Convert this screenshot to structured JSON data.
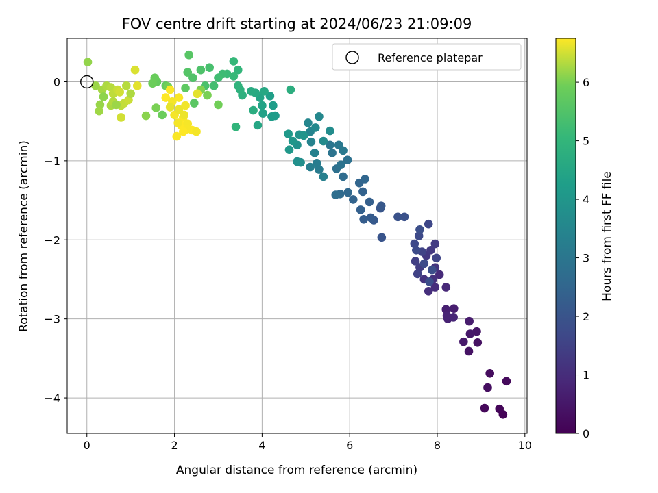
{
  "chart_data": {
    "type": "scatter",
    "title": "FOV centre drift starting at 2024/06/23 21:09:09",
    "xlabel": "Angular distance from reference (arcmin)",
    "ylabel": "Rotation from reference (arcmin)",
    "xlim": [
      -0.45,
      10.05
    ],
    "ylim": [
      -4.45,
      0.55
    ],
    "xticks": [
      "0",
      "2",
      "4",
      "6",
      "8",
      "10"
    ],
    "yticks": [
      "0",
      "−1",
      "−2",
      "−3",
      "−4"
    ],
    "grid": true,
    "colormap": "viridis",
    "colorbar": {
      "label": "Hours from first FF file",
      "range": [
        0,
        6.75
      ],
      "ticks": [
        "0",
        "1",
        "2",
        "3",
        "4",
        "5",
        "6"
      ]
    },
    "legend": {
      "position": "top-right",
      "entries": [
        "Reference platepar"
      ]
    },
    "reference_point": {
      "x": 0,
      "y": 0,
      "label": "Reference platepar"
    },
    "points": [
      [
        9.5,
        -4.21,
        0.05
      ],
      [
        9.42,
        -4.14,
        0.1
      ],
      [
        9.08,
        -4.13,
        0.15
      ],
      [
        9.58,
        -3.79,
        0.2
      ],
      [
        9.2,
        -3.69,
        0.25
      ],
      [
        9.15,
        -3.87,
        0.3
      ],
      [
        8.92,
        -3.3,
        0.35
      ],
      [
        8.72,
        -3.41,
        0.4
      ],
      [
        8.9,
        -3.16,
        0.45
      ],
      [
        8.75,
        -3.19,
        0.5
      ],
      [
        8.6,
        -3.29,
        0.55
      ],
      [
        8.73,
        -3.03,
        0.6
      ],
      [
        8.38,
        -2.87,
        0.65
      ],
      [
        8.2,
        -2.88,
        0.7
      ],
      [
        8.24,
        -3.0,
        0.75
      ],
      [
        8.22,
        -2.96,
        0.8
      ],
      [
        8.37,
        -2.98,
        0.85
      ],
      [
        8.2,
        -2.6,
        0.9
      ],
      [
        8.05,
        -2.44,
        0.95
      ],
      [
        7.95,
        -2.6,
        1.0
      ],
      [
        7.8,
        -2.65,
        1.05
      ],
      [
        7.9,
        -2.5,
        1.1
      ],
      [
        7.7,
        -2.5,
        1.15
      ],
      [
        7.95,
        -2.35,
        1.2
      ],
      [
        7.75,
        -2.2,
        1.25
      ],
      [
        7.85,
        -2.13,
        1.3
      ],
      [
        7.95,
        -2.05,
        1.35
      ],
      [
        7.6,
        -2.35,
        1.4
      ],
      [
        7.5,
        -2.27,
        1.45
      ],
      [
        7.55,
        -2.43,
        1.5
      ],
      [
        7.65,
        -2.15,
        1.55
      ],
      [
        7.98,
        -2.23,
        1.6
      ],
      [
        7.8,
        -1.8,
        1.65
      ],
      [
        7.48,
        -2.05,
        1.7
      ],
      [
        7.58,
        -1.95,
        1.72
      ],
      [
        7.52,
        -2.13,
        1.75
      ],
      [
        7.7,
        -2.3,
        1.78
      ],
      [
        7.82,
        -2.53,
        1.8
      ],
      [
        7.88,
        -2.38,
        1.82
      ],
      [
        7.6,
        -1.87,
        1.85
      ],
      [
        7.25,
        -1.71,
        1.9
      ],
      [
        7.1,
        -1.71,
        1.95
      ],
      [
        6.73,
        -1.97,
        2.0
      ],
      [
        6.7,
        -1.6,
        2.05
      ],
      [
        6.72,
        -1.57,
        2.1
      ],
      [
        6.55,
        -1.75,
        2.15
      ],
      [
        6.48,
        -1.72,
        2.2
      ],
      [
        6.32,
        -1.74,
        2.25
      ],
      [
        6.45,
        -1.52,
        2.3
      ],
      [
        6.25,
        -1.62,
        2.35
      ],
      [
        6.3,
        -1.39,
        2.4
      ],
      [
        6.08,
        -1.49,
        2.45
      ],
      [
        6.22,
        -1.28,
        2.5
      ],
      [
        6.35,
        -1.23,
        2.55
      ],
      [
        5.96,
        -1.4,
        2.6
      ],
      [
        5.78,
        -1.42,
        2.65
      ],
      [
        5.85,
        -1.2,
        2.7
      ],
      [
        5.68,
        -1.43,
        2.75
      ],
      [
        5.7,
        -1.1,
        2.8
      ],
      [
        5.95,
        -0.99,
        2.85
      ],
      [
        5.8,
        -1.05,
        2.9
      ],
      [
        5.6,
        -0.9,
        2.95
      ],
      [
        5.55,
        -0.8,
        3.0
      ],
      [
        5.75,
        -0.8,
        3.05
      ],
      [
        5.85,
        -0.87,
        3.1
      ],
      [
        5.3,
        -1.11,
        3.15
      ],
      [
        5.25,
        -1.03,
        3.2
      ],
      [
        5.1,
        -1.08,
        3.25
      ],
      [
        5.4,
        -1.2,
        3.3
      ],
      [
        5.2,
        -0.9,
        3.35
      ],
      [
        5.12,
        -0.76,
        3.4
      ],
      [
        5.1,
        -0.63,
        3.45
      ],
      [
        5.05,
        -0.52,
        3.5
      ],
      [
        5.3,
        -0.44,
        3.55
      ],
      [
        5.22,
        -0.58,
        3.6
      ],
      [
        5.4,
        -0.75,
        3.65
      ],
      [
        5.55,
        -0.62,
        3.7
      ],
      [
        4.88,
        -1.02,
        3.75
      ],
      [
        4.8,
        -1.01,
        3.8
      ],
      [
        4.8,
        -0.8,
        3.85
      ],
      [
        4.85,
        -0.67,
        3.9
      ],
      [
        4.95,
        -0.68,
        3.95
      ],
      [
        4.7,
        -0.75,
        4.0
      ],
      [
        4.62,
        -0.86,
        4.05
      ],
      [
        4.6,
        -0.66,
        4.1
      ],
      [
        4.3,
        -0.43,
        4.15
      ],
      [
        4.22,
        -0.44,
        4.2
      ],
      [
        4.25,
        -0.3,
        4.25
      ],
      [
        4.18,
        -0.18,
        4.3
      ],
      [
        4.02,
        -0.4,
        4.35
      ],
      [
        4.0,
        -0.3,
        4.4
      ],
      [
        3.95,
        -0.2,
        4.45
      ],
      [
        3.9,
        -0.55,
        4.5
      ],
      [
        4.05,
        -0.12,
        4.55
      ],
      [
        3.85,
        -0.14,
        4.6
      ],
      [
        3.75,
        -0.12,
        4.65
      ],
      [
        3.8,
        -0.36,
        4.7
      ],
      [
        4.65,
        -0.1,
        4.75
      ],
      [
        3.55,
        -0.17,
        4.8
      ],
      [
        3.5,
        -0.1,
        4.85
      ],
      [
        3.45,
        -0.05,
        4.9
      ],
      [
        3.4,
        -0.57,
        4.95
      ],
      [
        3.45,
        0.15,
        5.0
      ],
      [
        3.35,
        0.26,
        5.05
      ],
      [
        3.35,
        0.07,
        5.1
      ],
      [
        3.2,
        0.1,
        5.15
      ],
      [
        3.1,
        0.1,
        5.2
      ],
      [
        3.0,
        0.05,
        5.25
      ],
      [
        2.9,
        -0.05,
        5.3
      ],
      [
        2.8,
        0.18,
        5.35
      ],
      [
        2.7,
        -0.05,
        5.4
      ],
      [
        2.6,
        0.15,
        5.45
      ],
      [
        2.42,
        0.05,
        5.5
      ],
      [
        2.3,
        0.12,
        5.55
      ],
      [
        2.33,
        0.34,
        5.6
      ],
      [
        2.45,
        -0.27,
        5.65
      ],
      [
        2.25,
        -0.08,
        5.7
      ],
      [
        1.8,
        -0.05,
        5.75
      ],
      [
        1.6,
        0.0,
        5.8
      ],
      [
        1.55,
        0.05,
        5.85
      ],
      [
        1.5,
        -0.02,
        5.9
      ],
      [
        3.0,
        -0.29,
        5.95
      ],
      [
        2.75,
        -0.17,
        6.0
      ],
      [
        2.6,
        -0.1,
        6.05
      ],
      [
        1.35,
        -0.43,
        6.1
      ],
      [
        0.02,
        0.25,
        6.15
      ],
      [
        0.2,
        -0.05,
        6.2
      ],
      [
        0.35,
        -0.1,
        6.25
      ],
      [
        0.45,
        -0.05,
        6.3
      ],
      [
        0.55,
        -0.07,
        6.35
      ],
      [
        0.6,
        -0.15,
        6.4
      ],
      [
        0.7,
        -0.1,
        6.45
      ],
      [
        0.75,
        -0.13,
        6.5
      ],
      [
        1.1,
        0.15,
        6.55
      ],
      [
        1.15,
        -0.05,
        6.6
      ],
      [
        0.38,
        -0.19,
        6.12
      ],
      [
        0.3,
        -0.29,
        6.18
      ],
      [
        0.28,
        -0.37,
        6.22
      ],
      [
        0.55,
        -0.3,
        6.28
      ],
      [
        0.6,
        -0.25,
        6.33
      ],
      [
        0.78,
        -0.3,
        6.38
      ],
      [
        0.85,
        -0.27,
        6.42
      ],
      [
        0.95,
        -0.23,
        6.46
      ],
      [
        0.78,
        -0.45,
        6.5
      ],
      [
        1.0,
        -0.15,
        6.3
      ],
      [
        0.9,
        -0.05,
        6.35
      ],
      [
        1.58,
        -0.33,
        6.0
      ],
      [
        1.72,
        -0.42,
        5.9
      ],
      [
        1.85,
        -0.06,
        5.95
      ],
      [
        0.67,
        -0.29,
        6.2
      ],
      [
        1.8,
        -0.2,
        6.75
      ],
      [
        1.95,
        -0.25,
        6.7
      ],
      [
        2.1,
        -0.2,
        6.72
      ],
      [
        1.9,
        -0.1,
        6.74
      ],
      [
        2.25,
        -0.3,
        6.68
      ],
      [
        2.0,
        -0.42,
        6.7
      ],
      [
        2.2,
        -0.45,
        6.73
      ],
      [
        2.15,
        -0.55,
        6.75
      ],
      [
        2.3,
        -0.53,
        6.71
      ],
      [
        2.4,
        -0.61,
        6.74
      ],
      [
        2.28,
        -0.6,
        6.72
      ],
      [
        2.5,
        -0.63,
        6.7
      ],
      [
        2.2,
        -0.63,
        6.76
      ],
      [
        2.05,
        -0.69,
        6.73
      ],
      [
        2.08,
        -0.52,
        6.7
      ],
      [
        2.22,
        -0.42,
        6.66
      ],
      [
        2.1,
        -0.35,
        6.64
      ],
      [
        1.9,
        -0.32,
        6.62
      ],
      [
        2.52,
        -0.15,
        6.6
      ]
    ]
  }
}
